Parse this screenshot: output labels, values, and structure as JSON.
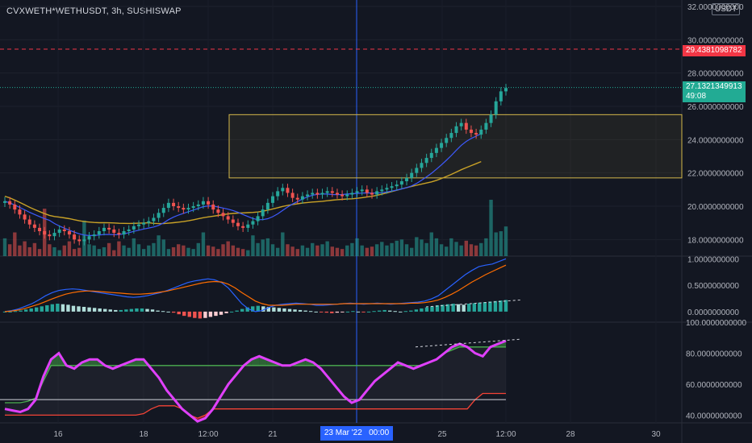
{
  "header": {
    "title": "CVXWETH*WETHUSDT, 3h, SUSHISWAP",
    "currency_badge": "USDT"
  },
  "price_tags": {
    "alert": {
      "value": "29.4381098782",
      "color": "#f23645"
    },
    "last": {
      "value": "27.1321349913",
      "countdown": "49:08",
      "color": "#22ab94"
    }
  },
  "crosshair": {
    "label": "23 Mar '22   00:00"
  },
  "chart_data": [
    {
      "type": "candlestick",
      "pane": "price",
      "yticks": [
        "32.0000000000",
        "30.0000000000",
        "28.0000000000",
        "26.0000000000",
        "24.0000000000",
        "22.0000000000",
        "20.0000000000",
        "18.0000000000"
      ],
      "ylim": [
        17.0,
        32.0
      ],
      "xticks": [
        "16",
        "18",
        "12:00",
        "21",
        "23 Mar '22   00:00",
        "25",
        "12:00",
        "28",
        "30"
      ],
      "rectangle": {
        "y_top": 25.5,
        "y_bottom": 21.7,
        "color": "#d4b84a"
      },
      "alert_level": 29.4381098782,
      "last_price": 27.1321349913,
      "closes": [
        20.3,
        20.1,
        19.8,
        19.5,
        19.2,
        18.9,
        18.7,
        18.5,
        18.3,
        18.2,
        18.4,
        18.6,
        18.5,
        18.3,
        18.0,
        17.9,
        18.0,
        18.2,
        18.3,
        18.5,
        18.7,
        18.6,
        18.4,
        18.3,
        18.5,
        18.6,
        18.8,
        18.9,
        19.0,
        19.1,
        19.3,
        19.6,
        19.9,
        20.2,
        20.0,
        19.9,
        19.8,
        19.9,
        20.0,
        20.1,
        20.3,
        20.1,
        19.8,
        19.6,
        19.4,
        19.2,
        19.0,
        18.8,
        18.7,
        18.9,
        19.1,
        19.4,
        19.8,
        20.2,
        20.6,
        20.9,
        21.1,
        20.8,
        20.5,
        20.4,
        20.6,
        20.7,
        20.8,
        20.7,
        20.8,
        20.9,
        20.8,
        20.7,
        20.6,
        20.7,
        20.8,
        20.9,
        21.0,
        20.8,
        20.7,
        20.9,
        21.0,
        21.1,
        21.2,
        21.3,
        21.5,
        21.7,
        22.0,
        22.3,
        22.6,
        22.9,
        23.2,
        23.5,
        23.8,
        24.1,
        24.4,
        24.8,
        25.0,
        24.6,
        24.4,
        24.3,
        24.6,
        25.0,
        25.5,
        26.3,
        26.9,
        27.1
      ]
    },
    {
      "type": "histogram",
      "pane": "volume",
      "values": [
        30,
        20,
        40,
        18,
        25,
        15,
        22,
        12,
        80,
        20,
        15,
        10,
        18,
        25,
        12,
        14,
        60,
        20,
        18,
        12,
        15,
        22,
        10,
        25,
        18,
        14,
        30,
        20,
        12,
        18,
        22,
        35,
        28,
        12,
        15,
        20,
        18,
        14,
        12,
        22,
        40,
        18,
        16,
        12,
        20,
        25,
        18,
        14,
        12,
        10,
        35,
        22,
        28,
        30,
        20,
        14,
        40,
        20,
        16,
        12,
        18,
        14,
        22,
        18,
        20,
        25,
        16,
        14,
        12,
        18,
        22,
        30,
        18,
        14,
        16,
        20,
        24,
        18,
        22,
        26,
        28,
        20,
        14,
        32,
        28,
        22,
        40,
        30,
        20,
        16,
        30,
        24,
        18,
        26,
        20,
        18,
        22,
        30,
        95,
        40,
        42,
        50
      ]
    },
    {
      "type": "line",
      "pane": "macd",
      "yticks": [
        "1.0000000000",
        "0.5000000000",
        "0.0000000000"
      ],
      "ylim": [
        -0.2,
        1.05
      ],
      "histogram": [
        0.0,
        0.0,
        0.01,
        0.02,
        0.04,
        0.06,
        0.08,
        0.1,
        0.12,
        0.14,
        0.15,
        0.14,
        0.13,
        0.11,
        0.1,
        0.09,
        0.08,
        0.07,
        0.06,
        0.05,
        0.04,
        0.03,
        0.03,
        0.04,
        0.05,
        0.06,
        0.06,
        0.05,
        0.04,
        0.02,
        0.01,
        0.0,
        -0.02,
        -0.05,
        -0.08,
        -0.1,
        -0.12,
        -0.13,
        -0.12,
        -0.1,
        -0.08,
        -0.06,
        -0.03,
        0.0,
        0.02,
        0.05,
        0.08,
        0.1,
        0.11,
        0.1,
        0.09,
        0.08,
        0.07,
        0.06,
        0.05,
        0.04,
        0.03,
        0.02,
        0.01,
        0.0,
        -0.01,
        -0.02,
        -0.03,
        -0.02,
        -0.01,
        0.0,
        0.01,
        0.0,
        -0.01,
        0.0,
        0.01,
        0.02,
        0.03,
        0.02,
        0.01,
        0.0,
        0.01,
        0.02,
        0.04,
        0.06,
        0.08,
        0.1,
        0.12,
        0.13,
        0.14,
        0.15,
        0.14,
        0.13,
        0.15,
        0.16,
        0.17,
        0.18,
        0.19,
        0.2,
        0.21,
        0.22
      ],
      "macd_line": [
        0.0,
        0.02,
        0.05,
        0.1,
        0.15,
        0.22,
        0.3,
        0.36,
        0.4,
        0.42,
        0.43,
        0.42,
        0.4,
        0.38,
        0.36,
        0.34,
        0.32,
        0.3,
        0.28,
        0.27,
        0.28,
        0.3,
        0.33,
        0.36,
        0.4,
        0.45,
        0.5,
        0.55,
        0.58,
        0.6,
        0.62,
        0.6,
        0.55,
        0.45,
        0.3,
        0.15,
        0.05,
        0.0,
        0.02,
        0.08,
        0.12,
        0.14,
        0.15,
        0.16,
        0.15,
        0.14,
        0.12,
        0.12,
        0.13,
        0.14,
        0.15,
        0.16,
        0.15,
        0.14,
        0.15,
        0.16,
        0.15,
        0.14,
        0.15,
        0.16,
        0.17,
        0.18,
        0.2,
        0.24,
        0.3,
        0.4,
        0.5,
        0.6,
        0.7,
        0.78,
        0.85,
        0.88,
        0.9,
        0.95,
        1.0
      ],
      "signal_line": [
        0.0,
        0.01,
        0.03,
        0.06,
        0.1,
        0.14,
        0.19,
        0.24,
        0.29,
        0.33,
        0.36,
        0.38,
        0.39,
        0.39,
        0.38,
        0.37,
        0.36,
        0.35,
        0.34,
        0.33,
        0.33,
        0.34,
        0.35,
        0.37,
        0.39,
        0.42,
        0.45,
        0.48,
        0.51,
        0.54,
        0.56,
        0.57,
        0.56,
        0.52,
        0.45,
        0.36,
        0.28,
        0.2,
        0.15,
        0.12,
        0.12,
        0.12,
        0.13,
        0.14,
        0.14,
        0.14,
        0.14,
        0.14,
        0.14,
        0.14,
        0.15,
        0.15,
        0.15,
        0.15,
        0.15,
        0.15,
        0.15,
        0.15,
        0.15,
        0.15,
        0.16,
        0.16,
        0.17,
        0.19,
        0.22,
        0.27,
        0.33,
        0.4,
        0.48,
        0.56,
        0.63,
        0.7,
        0.76,
        0.82,
        0.88
      ]
    },
    {
      "type": "line",
      "pane": "oscillator",
      "yticks": [
        "100.0000000000",
        "80.0000000000",
        "60.0000000000",
        "40.0000000000"
      ],
      "ylim": [
        35,
        100
      ],
      "rsi": [
        44,
        43,
        42,
        44,
        50,
        65,
        76,
        80,
        72,
        70,
        74,
        76,
        76,
        72,
        70,
        72,
        74,
        76,
        76,
        70,
        64,
        56,
        50,
        44,
        40,
        36,
        38,
        44,
        52,
        60,
        66,
        72,
        76,
        78,
        76,
        74,
        72,
        72,
        74,
        76,
        74,
        70,
        64,
        58,
        52,
        48,
        50,
        56,
        62,
        66,
        70,
        74,
        72,
        70,
        72,
        74,
        76,
        80,
        84,
        86,
        84,
        80,
        78,
        84,
        86,
        88
      ],
      "upper_band": [
        48,
        48,
        48,
        49,
        51,
        62,
        72,
        72,
        72,
        72,
        72,
        72,
        72,
        72,
        72,
        72,
        72,
        72,
        72,
        72,
        72,
        72,
        72,
        72,
        72,
        72,
        72,
        72,
        72,
        72,
        72,
        72,
        72,
        72,
        72,
        72,
        72,
        72,
        72,
        72,
        72,
        72,
        72,
        72,
        72,
        72,
        72,
        72,
        72,
        72,
        72,
        72,
        72,
        72,
        72,
        74,
        76,
        80,
        82,
        84,
        84,
        84,
        84,
        84,
        84,
        84
      ],
      "lower_band": [
        40,
        40,
        40,
        40,
        40,
        40,
        40,
        40,
        40,
        40,
        40,
        40,
        40,
        40,
        40,
        40,
        40,
        40,
        41,
        44,
        46,
        46,
        46,
        44,
        40,
        38,
        40,
        44,
        44,
        44,
        44,
        44,
        44,
        44,
        44,
        44,
        44,
        44,
        44,
        44,
        44,
        44,
        44,
        44,
        44,
        44,
        44,
        44,
        44,
        44,
        44,
        44,
        44,
        44,
        44,
        44,
        44,
        44,
        44,
        44,
        44,
        50,
        54,
        54,
        54,
        54
      ],
      "mid_line": 50
    }
  ]
}
